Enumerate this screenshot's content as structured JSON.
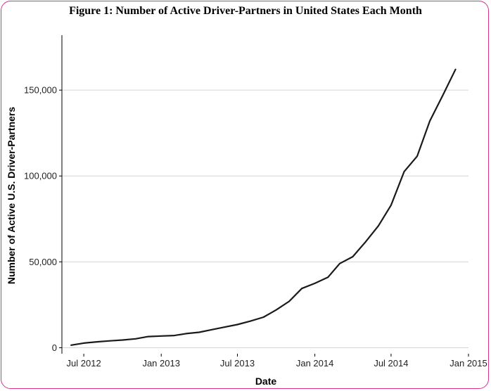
{
  "chart_data": {
    "type": "line",
    "title": "Figure 1: Number of Active Driver-Partners in United States Each Month",
    "xlabel": "Date",
    "ylabel": "Number of Active U.S. Driver-Partners",
    "x_ticks": [
      "Jul 2012",
      "Jan 2013",
      "Jul 2013",
      "Jan 2014",
      "Jul 2014",
      "Jan 2015"
    ],
    "y_ticks": [
      "0",
      "50,000",
      "100,000",
      "150,000"
    ],
    "y_tick_values": [
      0,
      50000,
      100000,
      150000
    ],
    "ylim": [
      -3500,
      182000
    ],
    "xlim": [
      "2012-05-10",
      "2015-01-01"
    ],
    "grid": "horizontal",
    "series": [
      {
        "color": "#1a1a1a",
        "x": [
          "2012-06-01",
          "2012-07-01",
          "2012-08-01",
          "2012-09-01",
          "2012-10-01",
          "2012-11-01",
          "2012-12-01",
          "2013-01-01",
          "2013-02-01",
          "2013-03-01",
          "2013-04-01",
          "2013-05-01",
          "2013-06-01",
          "2013-07-01",
          "2013-08-01",
          "2013-09-01",
          "2013-10-01",
          "2013-11-01",
          "2013-12-01",
          "2014-01-01",
          "2014-02-01",
          "2014-03-01",
          "2014-04-01",
          "2014-05-01",
          "2014-06-01",
          "2014-07-01",
          "2014-08-01",
          "2014-09-01",
          "2014-10-01",
          "2014-11-01",
          "2014-12-01"
        ],
        "values": [
          1500,
          2700,
          3400,
          4000,
          4500,
          5200,
          6500,
          6800,
          7100,
          8200,
          9000,
          10500,
          12000,
          13500,
          15500,
          17800,
          22000,
          27000,
          34500,
          37500,
          41000,
          49000,
          53000,
          61500,
          71000,
          83000,
          102500,
          111500,
          132000,
          147000,
          162000
        ]
      }
    ]
  }
}
